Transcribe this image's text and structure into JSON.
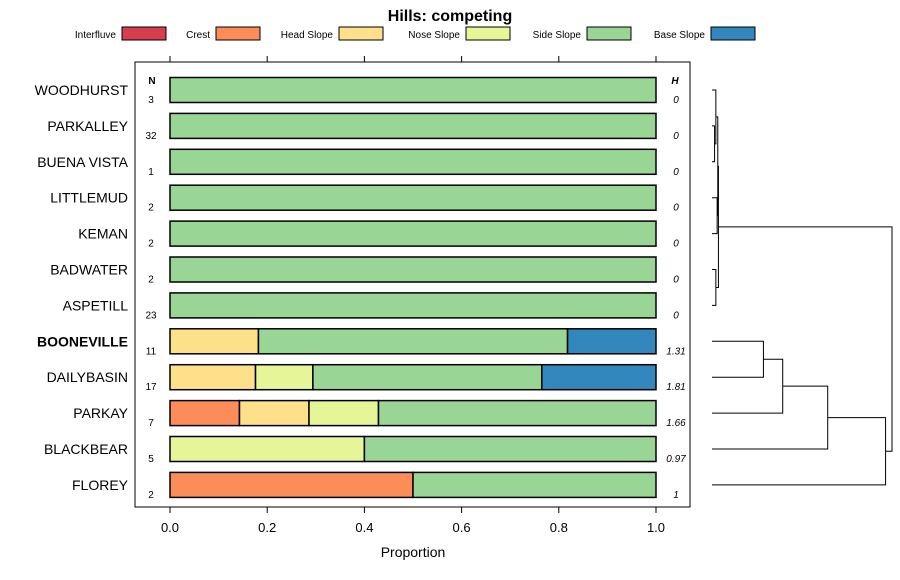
{
  "chart_data": {
    "type": "bar",
    "orientation": "horizontal",
    "stacked": true,
    "title": "Hills: competing",
    "xlabel": "Proportion",
    "ylabel": "",
    "xlim": [
      0,
      1
    ],
    "xticks": [
      "0.0",
      "0.2",
      "0.4",
      "0.6",
      "0.8",
      "1.0"
    ],
    "n_header": "N",
    "h_header": "H",
    "legend": [
      {
        "name": "Interfluve",
        "color": "#d53e4f"
      },
      {
        "name": "Crest",
        "color": "#fc8d59"
      },
      {
        "name": "Head Slope",
        "color": "#fee08b"
      },
      {
        "name": "Nose Slope",
        "color": "#e6f598"
      },
      {
        "name": "Side Slope",
        "color": "#99d594"
      },
      {
        "name": "Base Slope",
        "color": "#3288bd"
      }
    ],
    "categories": [
      "WOODHURST",
      "PARKALLEY",
      "BUENA VISTA",
      "LITTLEMUD",
      "KEMAN",
      "BADWATER",
      "ASPETILL",
      "BOONEVILLE",
      "DAILYBASIN",
      "PARKAY",
      "BLACKBEAR",
      "FLOREY"
    ],
    "highlight": "BOONEVILLE",
    "n": [
      "3",
      "32",
      "1",
      "2",
      "2",
      "2",
      "23",
      "11",
      "17",
      "7",
      "5",
      "2"
    ],
    "h": [
      "0",
      "0",
      "0",
      "0",
      "0",
      "0",
      "0",
      "1.31",
      "1.81",
      "1.66",
      "0.97",
      "1"
    ],
    "series": [
      {
        "name": "Interfluve",
        "values": [
          0,
          0,
          0,
          0,
          0,
          0,
          0,
          0,
          0,
          0,
          0,
          0
        ]
      },
      {
        "name": "Crest",
        "values": [
          0,
          0,
          0,
          0,
          0,
          0,
          0,
          0,
          0,
          0.143,
          0,
          0.5
        ]
      },
      {
        "name": "Head Slope",
        "values": [
          0,
          0,
          0,
          0,
          0,
          0,
          0,
          0.182,
          0.176,
          0.143,
          0,
          0
        ]
      },
      {
        "name": "Nose Slope",
        "values": [
          0,
          0,
          0,
          0,
          0,
          0,
          0,
          0,
          0.118,
          0.143,
          0.4,
          0
        ]
      },
      {
        "name": "Side Slope",
        "values": [
          1,
          1,
          1,
          1,
          1,
          1,
          1,
          0.636,
          0.471,
          0.571,
          0.6,
          0.5
        ]
      },
      {
        "name": "Base Slope",
        "values": [
          0,
          0,
          0,
          0,
          0,
          0,
          0,
          0.182,
          0.235,
          0,
          0,
          0
        ]
      }
    ],
    "dendrogram": {
      "merges": [
        {
          "a": 1,
          "b": 2,
          "height": 0.02
        },
        {
          "a": 0,
          "b": "m0",
          "height": 0.03
        },
        {
          "a": 3,
          "b": 4,
          "height": 0.04
        },
        {
          "a": "m1",
          "b": "m2",
          "height": 0.045
        },
        {
          "a": 5,
          "b": 6,
          "height": 0.03
        },
        {
          "a": "m3",
          "b": "m4",
          "height": 0.05
        },
        {
          "a": 7,
          "b": 8,
          "height": 0.4
        },
        {
          "a": "m6",
          "b": 9,
          "height": 0.55
        },
        {
          "a": "m7",
          "b": 10,
          "height": 0.9
        },
        {
          "a": "m8",
          "b": 11,
          "height": 1.35
        },
        {
          "a": "m5",
          "b": "m9",
          "height": 1.4
        }
      ],
      "max_height": 1.4
    }
  }
}
